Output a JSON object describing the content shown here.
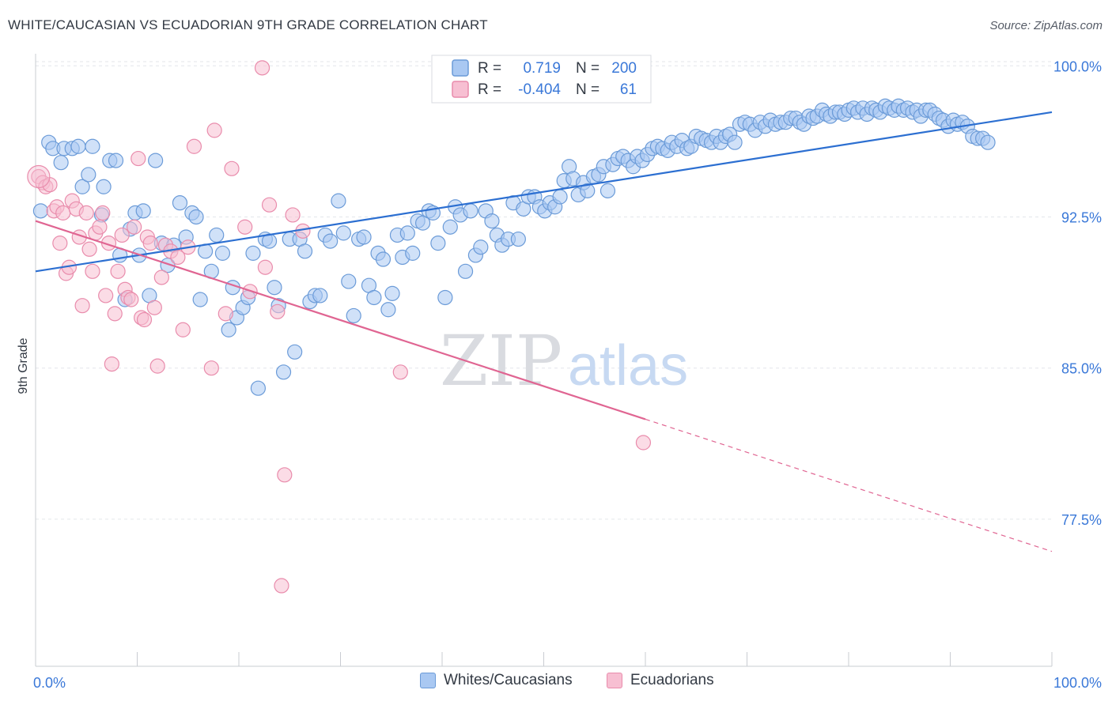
{
  "title": "WHITE/CAUCASIAN VS ECUADORIAN 9TH GRADE CORRELATION CHART",
  "source": "Source: ZipAtlas.com",
  "watermark": {
    "zip": "ZIP",
    "atlas": "atlas"
  },
  "colors": {
    "blue_fill": "#a9c8f2",
    "blue_stroke": "#6b9bd8",
    "blue_line": "#2c6fd1",
    "pink_fill": "#f7bfd2",
    "pink_stroke": "#e98cac",
    "pink_line": "#e06592",
    "axis_label": "#3a78d8",
    "grid": "#e3e6ea",
    "text": "#333a44"
  },
  "legend_top": {
    "rows": [
      {
        "series": "blue",
        "r_label": "R =",
        "r_value": "0.719",
        "n_label": "N =",
        "n_value": "200"
      },
      {
        "series": "pink",
        "r_label": "R =",
        "r_value": "-0.404",
        "n_label": "N =",
        "n_value": "61"
      }
    ]
  },
  "legend_bottom": [
    {
      "series": "blue",
      "label": "Whites/Caucasians"
    },
    {
      "series": "pink",
      "label": "Ecuadorians"
    }
  ],
  "chart_data": {
    "type": "scatter",
    "title": "WHITE/CAUCASIAN VS ECUADORIAN 9TH GRADE CORRELATION CHART",
    "xlabel": "",
    "ylabel": "9th Grade",
    "xlim": [
      0,
      100
    ],
    "ylim": [
      70.2,
      100.6
    ],
    "x_tick_labels": [
      "0.0%",
      "100.0%"
    ],
    "y_ticks": [
      100.0,
      92.5,
      85.0,
      77.5
    ],
    "y_tick_labels": [
      "100.0%",
      "92.5%",
      "85.0%",
      "77.5%"
    ],
    "grid": true,
    "series": [
      {
        "name": "Whites/Caucasians",
        "color": "#6b9bd8",
        "trend": {
          "x0": 0,
          "y0": 89.8,
          "x1": 100,
          "y1": 97.7,
          "solid_to": 100
        },
        "points": [
          [
            0.5,
            92.8
          ],
          [
            1.3,
            96.2
          ],
          [
            1.7,
            95.9
          ],
          [
            2.5,
            95.2
          ],
          [
            2.8,
            95.9
          ],
          [
            3.6,
            95.9
          ],
          [
            4.2,
            96.0
          ],
          [
            4.6,
            94.0
          ],
          [
            5.2,
            94.6
          ],
          [
            5.6,
            96.0
          ],
          [
            6.5,
            92.6
          ],
          [
            6.7,
            94.0
          ],
          [
            7.3,
            95.3
          ],
          [
            7.9,
            95.3
          ],
          [
            8.3,
            90.6
          ],
          [
            8.8,
            88.4
          ],
          [
            9.3,
            91.9
          ],
          [
            9.8,
            92.7
          ],
          [
            10.2,
            90.6
          ],
          [
            10.6,
            92.8
          ],
          [
            11.2,
            88.6
          ],
          [
            11.8,
            95.3
          ],
          [
            12.4,
            91.2
          ],
          [
            13.0,
            90.1
          ],
          [
            13.6,
            91.1
          ],
          [
            14.2,
            93.2
          ],
          [
            14.8,
            91.5
          ],
          [
            15.4,
            92.7
          ],
          [
            15.8,
            92.5
          ],
          [
            16.2,
            88.4
          ],
          [
            16.7,
            90.8
          ],
          [
            17.3,
            89.8
          ],
          [
            17.8,
            91.6
          ],
          [
            18.4,
            90.7
          ],
          [
            19.0,
            86.9
          ],
          [
            19.4,
            89.0
          ],
          [
            19.8,
            87.5
          ],
          [
            20.4,
            88.0
          ],
          [
            20.9,
            88.5
          ],
          [
            21.4,
            90.7
          ],
          [
            21.9,
            84.0
          ],
          [
            22.6,
            91.4
          ],
          [
            23.0,
            91.3
          ],
          [
            23.5,
            89.0
          ],
          [
            23.9,
            88.1
          ],
          [
            24.4,
            84.8
          ],
          [
            25.0,
            91.4
          ],
          [
            25.5,
            85.8
          ],
          [
            26.0,
            91.4
          ],
          [
            26.5,
            90.8
          ],
          [
            27.0,
            88.3
          ],
          [
            27.5,
            88.6
          ],
          [
            28.0,
            88.6
          ],
          [
            28.5,
            91.6
          ],
          [
            29.0,
            91.3
          ],
          [
            29.8,
            93.3
          ],
          [
            30.3,
            91.7
          ],
          [
            30.8,
            89.3
          ],
          [
            31.3,
            87.6
          ],
          [
            31.8,
            91.4
          ],
          [
            32.3,
            91.5
          ],
          [
            32.8,
            89.1
          ],
          [
            33.3,
            88.5
          ],
          [
            33.7,
            90.7
          ],
          [
            34.2,
            90.4
          ],
          [
            34.7,
            87.9
          ],
          [
            35.1,
            88.7
          ],
          [
            35.6,
            91.6
          ],
          [
            36.1,
            90.5
          ],
          [
            36.6,
            91.7
          ],
          [
            37.1,
            90.7
          ],
          [
            37.6,
            92.3
          ],
          [
            38.1,
            92.2
          ],
          [
            38.7,
            92.8
          ],
          [
            39.1,
            92.7
          ],
          [
            39.6,
            91.2
          ],
          [
            40.3,
            88.5
          ],
          [
            40.8,
            92.0
          ],
          [
            41.3,
            93.0
          ],
          [
            41.8,
            92.6
          ],
          [
            42.3,
            89.8
          ],
          [
            42.8,
            92.8
          ],
          [
            43.3,
            90.6
          ],
          [
            43.8,
            91.0
          ],
          [
            44.3,
            92.8
          ],
          [
            44.9,
            92.3
          ],
          [
            45.4,
            91.6
          ],
          [
            45.9,
            91.1
          ],
          [
            46.5,
            91.4
          ],
          [
            47.0,
            93.2
          ],
          [
            47.5,
            91.4
          ],
          [
            48.0,
            92.9
          ],
          [
            48.5,
            93.5
          ],
          [
            49.1,
            93.5
          ],
          [
            49.6,
            93.0
          ],
          [
            50.1,
            92.8
          ],
          [
            50.6,
            93.2
          ],
          [
            51.1,
            93.0
          ],
          [
            51.6,
            93.5
          ],
          [
            52.0,
            94.3
          ],
          [
            52.5,
            95.0
          ],
          [
            52.9,
            94.4
          ],
          [
            53.4,
            93.6
          ],
          [
            53.9,
            94.2
          ],
          [
            54.3,
            93.8
          ],
          [
            54.9,
            94.5
          ],
          [
            55.4,
            94.6
          ],
          [
            55.9,
            95.0
          ],
          [
            56.3,
            93.8
          ],
          [
            56.8,
            95.1
          ],
          [
            57.3,
            95.4
          ],
          [
            57.8,
            95.5
          ],
          [
            58.3,
            95.3
          ],
          [
            58.8,
            95.0
          ],
          [
            59.2,
            95.5
          ],
          [
            59.7,
            95.3
          ],
          [
            60.2,
            95.6
          ],
          [
            60.7,
            95.9
          ],
          [
            61.2,
            96.0
          ],
          [
            61.7,
            95.9
          ],
          [
            62.2,
            95.8
          ],
          [
            62.6,
            96.2
          ],
          [
            63.1,
            96.0
          ],
          [
            63.6,
            96.3
          ],
          [
            64.1,
            95.9
          ],
          [
            64.5,
            96.0
          ],
          [
            65.0,
            96.5
          ],
          [
            65.5,
            96.4
          ],
          [
            66.0,
            96.3
          ],
          [
            66.5,
            96.2
          ],
          [
            67.0,
            96.5
          ],
          [
            67.4,
            96.2
          ],
          [
            67.9,
            96.5
          ],
          [
            68.3,
            96.6
          ],
          [
            68.8,
            96.2
          ],
          [
            69.3,
            97.1
          ],
          [
            69.8,
            97.2
          ],
          [
            70.3,
            97.1
          ],
          [
            70.8,
            96.8
          ],
          [
            71.3,
            97.2
          ],
          [
            71.8,
            97.0
          ],
          [
            72.3,
            97.3
          ],
          [
            72.8,
            97.1
          ],
          [
            73.3,
            97.2
          ],
          [
            73.8,
            97.2
          ],
          [
            74.3,
            97.4
          ],
          [
            74.8,
            97.4
          ],
          [
            75.2,
            97.2
          ],
          [
            75.6,
            97.1
          ],
          [
            76.1,
            97.5
          ],
          [
            76.5,
            97.4
          ],
          [
            76.9,
            97.5
          ],
          [
            77.4,
            97.8
          ],
          [
            77.8,
            97.6
          ],
          [
            78.2,
            97.5
          ],
          [
            78.7,
            97.7
          ],
          [
            79.1,
            97.7
          ],
          [
            79.6,
            97.6
          ],
          [
            80.0,
            97.8
          ],
          [
            80.5,
            97.9
          ],
          [
            80.9,
            97.7
          ],
          [
            81.4,
            97.9
          ],
          [
            81.8,
            97.6
          ],
          [
            82.3,
            97.9
          ],
          [
            82.7,
            97.8
          ],
          [
            83.1,
            97.7
          ],
          [
            83.6,
            98.0
          ],
          [
            84.0,
            97.9
          ],
          [
            84.5,
            97.8
          ],
          [
            84.9,
            98.0
          ],
          [
            85.4,
            97.8
          ],
          [
            85.8,
            97.9
          ],
          [
            86.3,
            97.7
          ],
          [
            86.7,
            97.8
          ],
          [
            87.1,
            97.5
          ],
          [
            87.6,
            97.8
          ],
          [
            88.0,
            97.8
          ],
          [
            88.5,
            97.6
          ],
          [
            88.9,
            97.4
          ],
          [
            89.3,
            97.3
          ],
          [
            89.8,
            97.0
          ],
          [
            90.3,
            97.3
          ],
          [
            90.7,
            97.1
          ],
          [
            91.2,
            97.2
          ],
          [
            91.7,
            97.0
          ],
          [
            92.2,
            96.5
          ],
          [
            92.7,
            96.4
          ],
          [
            93.2,
            96.4
          ],
          [
            93.7,
            96.2
          ]
        ]
      },
      {
        "name": "Ecuadorians",
        "color": "#e98cac",
        "trend": {
          "x0": 0,
          "y0": 92.3,
          "x1": 100,
          "y1": 75.9,
          "solid_to": 60
        },
        "points": [
          [
            0.3,
            94.5
          ],
          [
            0.7,
            94.2
          ],
          [
            1.0,
            94.0
          ],
          [
            1.4,
            94.1
          ],
          [
            1.8,
            92.8
          ],
          [
            2.1,
            93.0
          ],
          [
            2.4,
            91.2
          ],
          [
            2.7,
            92.7
          ],
          [
            3.0,
            89.7
          ],
          [
            3.3,
            90.0
          ],
          [
            3.6,
            93.3
          ],
          [
            4.0,
            92.9
          ],
          [
            4.3,
            91.5
          ],
          [
            4.6,
            88.1
          ],
          [
            5.0,
            92.7
          ],
          [
            5.3,
            90.9
          ],
          [
            5.6,
            89.8
          ],
          [
            5.9,
            91.7
          ],
          [
            6.3,
            92.0
          ],
          [
            6.6,
            92.7
          ],
          [
            6.9,
            88.6
          ],
          [
            7.2,
            91.2
          ],
          [
            7.5,
            85.2
          ],
          [
            7.8,
            87.7
          ],
          [
            8.1,
            89.8
          ],
          [
            8.5,
            91.6
          ],
          [
            8.8,
            88.9
          ],
          [
            9.1,
            88.5
          ],
          [
            9.4,
            88.4
          ],
          [
            9.7,
            92.0
          ],
          [
            10.1,
            95.4
          ],
          [
            10.4,
            87.5
          ],
          [
            10.7,
            87.4
          ],
          [
            11.0,
            91.5
          ],
          [
            11.3,
            91.2
          ],
          [
            11.7,
            88.0
          ],
          [
            12.0,
            85.1
          ],
          [
            12.4,
            89.5
          ],
          [
            12.8,
            91.1
          ],
          [
            13.3,
            90.8
          ],
          [
            14.0,
            90.5
          ],
          [
            14.5,
            86.9
          ],
          [
            15.0,
            91.0
          ],
          [
            15.6,
            96.0
          ],
          [
            17.3,
            85.0
          ],
          [
            18.7,
            87.7
          ],
          [
            17.6,
            96.8
          ],
          [
            19.3,
            94.9
          ],
          [
            20.6,
            92.0
          ],
          [
            21.1,
            88.8
          ],
          [
            22.6,
            90.0
          ],
          [
            23.0,
            93.1
          ],
          [
            23.8,
            87.8
          ],
          [
            24.2,
            74.2
          ],
          [
            24.5,
            79.7
          ],
          [
            25.3,
            92.6
          ],
          [
            26.3,
            91.8
          ],
          [
            22.3,
            99.9
          ],
          [
            35.9,
            84.8
          ],
          [
            59.8,
            81.3
          ]
        ]
      }
    ]
  }
}
